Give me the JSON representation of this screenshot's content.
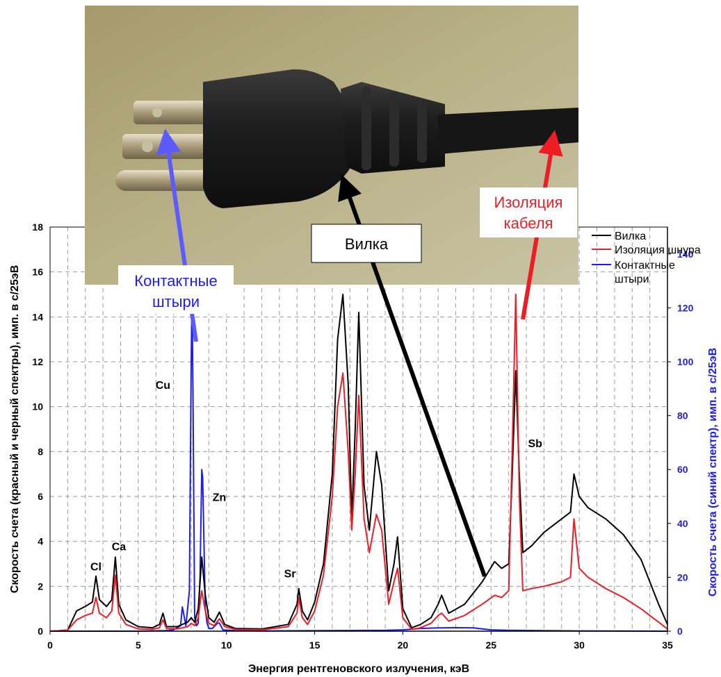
{
  "chart_data": {
    "type": "line",
    "xlabel": "Энергия рентгеновского излучения, кэВ",
    "ylabel_left": "Скорость счета (красный и черный спектры), имп. в с/25эВ",
    "ylabel_right": "Скорость счета (синий спектр), имп. в с/25эВ",
    "xlim": [
      0,
      35
    ],
    "ylim_left": [
      0,
      18
    ],
    "ylim_right": [
      0,
      150
    ],
    "x_ticks": [
      0,
      5,
      10,
      15,
      20,
      25,
      30,
      35
    ],
    "y_ticks_left": [
      0,
      2,
      4,
      6,
      8,
      10,
      12,
      14,
      16,
      18
    ],
    "y_ticks_right": [
      0,
      20,
      40,
      60,
      80,
      100,
      120,
      140
    ],
    "grid": true,
    "legend_position": "top-right",
    "series": [
      {
        "name": "Вилка",
        "color": "#000000",
        "axis": "left",
        "x": [
          0,
          0.5,
          1.0,
          1.5,
          2.0,
          2.4,
          2.6,
          2.8,
          3.2,
          3.5,
          3.7,
          3.9,
          4.3,
          5.0,
          5.8,
          6.2,
          6.4,
          6.6,
          7.2,
          7.8,
          8.0,
          8.2,
          8.4,
          8.6,
          8.8,
          9.0,
          9.3,
          9.6,
          9.9,
          10.5,
          12.0,
          13.5,
          14.0,
          14.1,
          14.3,
          14.6,
          15.0,
          15.5,
          16.0,
          16.3,
          16.6,
          16.9,
          17.1,
          17.3,
          17.5,
          17.8,
          18.1,
          18.5,
          18.8,
          19.2,
          19.5,
          19.7,
          20.0,
          20.5,
          21.0,
          21.6,
          22.0,
          22.2,
          22.6,
          23.5,
          24.5,
          25.2,
          25.6,
          26.0,
          26.2,
          26.4,
          26.6,
          26.8,
          27.3,
          28.0,
          29.0,
          29.5,
          29.7,
          30.0,
          30.5,
          31.5,
          32.5,
          33.5,
          34.5,
          35.0
        ],
        "y": [
          0,
          0.02,
          0.05,
          0.9,
          1.1,
          1.3,
          2.45,
          1.4,
          1.1,
          1.4,
          3.3,
          1.2,
          0.5,
          0.2,
          0.15,
          0.3,
          0.8,
          0.2,
          0.2,
          0.4,
          0.6,
          0.4,
          1.0,
          3.3,
          1.6,
          0.6,
          0.4,
          0.85,
          0.3,
          0.12,
          0.1,
          0.3,
          1.2,
          1.9,
          0.9,
          0.5,
          1.3,
          3.0,
          7.0,
          13.0,
          15.0,
          11.0,
          5.0,
          9.0,
          14.2,
          6.5,
          4.5,
          8.0,
          6.5,
          1.8,
          3.0,
          4.2,
          1.0,
          0.15,
          0.3,
          0.6,
          1.2,
          1.6,
          0.8,
          1.2,
          2.2,
          3.1,
          2.8,
          3.0,
          7.0,
          11.6,
          7.0,
          3.5,
          3.8,
          4.4,
          5.0,
          5.3,
          7.0,
          6.0,
          5.5,
          5.0,
          4.3,
          3.2,
          1.2,
          0.3
        ]
      },
      {
        "name": "Изоляция шнура",
        "color": "#ee1c25",
        "axis": "left",
        "x": [
          0,
          0.5,
          1.0,
          1.5,
          2.0,
          2.4,
          2.6,
          2.8,
          3.2,
          3.5,
          3.7,
          3.9,
          4.3,
          5.0,
          5.8,
          6.2,
          6.4,
          6.6,
          7.2,
          7.8,
          8.0,
          8.2,
          8.4,
          8.6,
          8.8,
          9.0,
          9.3,
          9.6,
          9.9,
          10.5,
          12.0,
          13.5,
          14.0,
          14.1,
          14.3,
          14.6,
          15.0,
          15.5,
          16.0,
          16.3,
          16.6,
          16.9,
          17.1,
          17.3,
          17.5,
          17.8,
          18.1,
          18.5,
          18.8,
          19.2,
          19.5,
          19.7,
          20.0,
          20.5,
          21.0,
          21.6,
          22.0,
          22.2,
          22.6,
          23.5,
          24.5,
          25.2,
          25.6,
          26.0,
          26.2,
          26.4,
          26.6,
          26.8,
          27.3,
          28.0,
          29.0,
          29.5,
          29.7,
          30.0,
          30.5,
          31.5,
          32.5,
          33.5,
          34.5,
          35.0
        ],
        "y": [
          0,
          0.02,
          0.05,
          0.5,
          0.7,
          0.8,
          1.5,
          0.8,
          0.6,
          0.9,
          2.5,
          0.8,
          0.3,
          0.1,
          0.08,
          0.15,
          0.5,
          0.12,
          0.1,
          0.2,
          0.35,
          0.25,
          0.6,
          1.8,
          0.9,
          0.35,
          0.25,
          0.55,
          0.2,
          0.08,
          0.06,
          0.2,
          0.8,
          1.5,
          0.6,
          0.3,
          0.9,
          2.5,
          6.0,
          10.0,
          11.5,
          8.0,
          4.5,
          7.0,
          10.5,
          5.0,
          3.5,
          5.2,
          4.5,
          1.2,
          2.2,
          2.8,
          0.6,
          0.08,
          0.15,
          0.35,
          0.7,
          0.8,
          0.45,
          0.7,
          1.2,
          1.6,
          1.5,
          1.8,
          8.0,
          15.0,
          6.0,
          1.8,
          1.9,
          2.0,
          2.2,
          2.4,
          5.0,
          2.8,
          2.4,
          1.9,
          1.5,
          1.0,
          0.4,
          0.1
        ]
      },
      {
        "name": "Контактные штыри",
        "color": "#1a1aff",
        "axis": "right",
        "x": [
          0,
          5.0,
          6.5,
          7.0,
          7.4,
          7.5,
          7.7,
          7.9,
          8.0,
          8.05,
          8.1,
          8.2,
          8.3,
          8.4,
          8.5,
          8.6,
          8.65,
          8.8,
          8.9,
          9.0,
          9.2,
          9.5,
          9.6,
          9.8,
          10.5,
          12.0,
          15.0,
          19.0,
          20.0,
          21.0,
          22.0,
          23.0,
          24.0,
          25.0,
          26.0,
          30.0,
          35.0
        ],
        "y": [
          0,
          0,
          0.2,
          0.5,
          2,
          9,
          2,
          15,
          100,
          124,
          90,
          5,
          2,
          3,
          20,
          60,
          57,
          8,
          3,
          1,
          1,
          3,
          3,
          0.5,
          0.2,
          0.1,
          0.2,
          0.3,
          0.5,
          1.0,
          1.2,
          1.3,
          1.2,
          0.5,
          0.3,
          0.1,
          0
        ]
      }
    ],
    "annotations": [
      {
        "text": "Cl",
        "x": 2.6,
        "y": 2.7
      },
      {
        "text": "Ca",
        "x": 3.9,
        "y": 3.6
      },
      {
        "text": "Cu",
        "x": 6.4,
        "y": 10.8
      },
      {
        "text": "Zn",
        "x": 9.6,
        "y": 5.8
      },
      {
        "text": "Sr",
        "x": 13.6,
        "y": 2.4
      },
      {
        "text": "Sb",
        "x": 27.5,
        "y": 8.2
      }
    ]
  },
  "photo": {
    "callouts": {
      "pins": "Контактные штыри",
      "plug": "Вилка",
      "cable": "Изоляция кабеля"
    },
    "arrow_colors": {
      "pins": "#5b5bff",
      "plug": "#000000",
      "cable": "#ee1c25"
    }
  }
}
